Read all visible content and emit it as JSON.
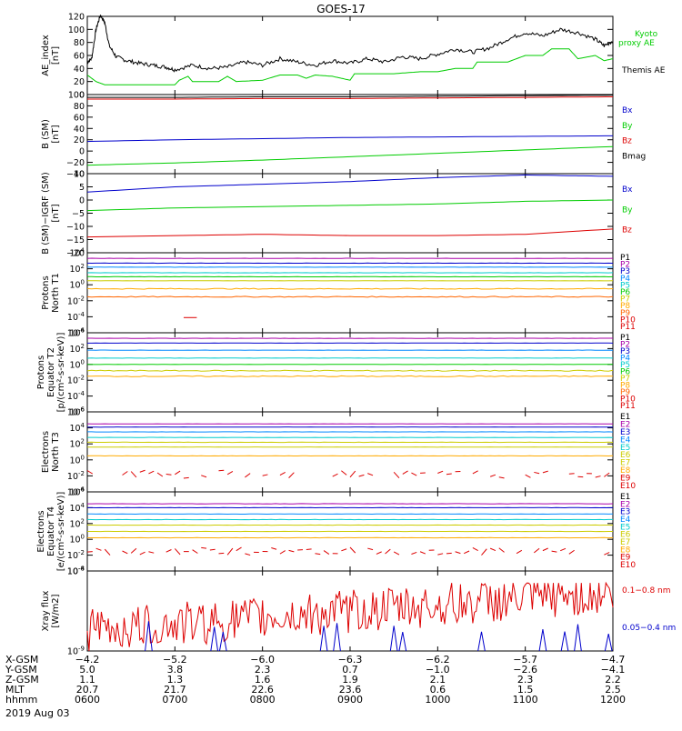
{
  "title": "GOES-17",
  "date_label": "2019 Aug 03",
  "colors": {
    "black": "#000000",
    "green": "#00cc00",
    "blue": "#0000cc",
    "red": "#dd0000"
  },
  "chart_data": [
    {
      "id": "ae",
      "type": "line",
      "ylabel": [
        "AE_index",
        "[nT]"
      ],
      "ylim": [
        0,
        120
      ],
      "yticks": [
        "0",
        "20",
        "40",
        "60",
        "80",
        "100",
        "120"
      ],
      "yscale": "linear",
      "legend": [
        {
          "text": "Kyoto",
          "color": "#00cc00"
        },
        {
          "text": "proxy AE",
          "color": "#00cc00"
        },
        {
          "text": "Themis AE",
          "color": "#000000"
        }
      ],
      "series": [
        {
          "color": "#000000",
          "x": [
            6.0,
            6.05,
            6.1,
            6.15,
            6.2,
            6.25,
            6.33,
            6.45,
            6.6,
            6.75,
            6.9,
            7.0,
            7.2,
            7.4,
            7.6,
            7.8,
            8.0,
            8.2,
            8.4,
            8.6,
            8.8,
            9.0,
            9.2,
            9.4,
            9.6,
            9.8,
            10.0,
            10.2,
            10.4,
            10.6,
            10.8,
            11.0,
            11.2,
            11.4,
            11.6,
            11.8,
            11.9,
            12.0
          ],
          "y": [
            50,
            55,
            100,
            122,
            110,
            75,
            58,
            52,
            48,
            45,
            42,
            38,
            45,
            40,
            42,
            50,
            45,
            55,
            50,
            45,
            52,
            48,
            55,
            50,
            58,
            55,
            62,
            70,
            65,
            72,
            85,
            95,
            90,
            100,
            95,
            85,
            75,
            82
          ]
        },
        {
          "color": "#00cc00",
          "x": [
            6.0,
            6.1,
            6.2,
            6.3,
            6.5,
            7.0,
            7.05,
            7.15,
            7.2,
            7.5,
            7.6,
            7.7,
            8.0,
            8.2,
            8.4,
            8.5,
            8.6,
            8.8,
            9.0,
            9.05,
            9.5,
            9.8,
            10.0,
            10.2,
            10.4,
            10.45,
            10.8,
            11.0,
            11.2,
            11.3,
            11.5,
            11.6,
            11.8,
            11.9,
            12.0
          ],
          "y": [
            30,
            20,
            15,
            15,
            15,
            15,
            22,
            28,
            20,
            20,
            28,
            20,
            22,
            30,
            30,
            25,
            30,
            28,
            22,
            32,
            32,
            35,
            35,
            40,
            40,
            50,
            50,
            60,
            60,
            70,
            70,
            55,
            60,
            52,
            55
          ]
        }
      ]
    },
    {
      "id": "bsm",
      "type": "line",
      "ylabel": [
        "B (SM)",
        "[nT]"
      ],
      "ylim": [
        -40,
        100
      ],
      "yticks": [
        "−40",
        "−20",
        "0",
        "20",
        "40",
        "60",
        "80",
        "100"
      ],
      "yscale": "linear",
      "legend": [
        {
          "text": "Bx",
          "color": "#0000cc"
        },
        {
          "text": "By",
          "color": "#00cc00"
        },
        {
          "text": "Bz",
          "color": "#dd0000"
        },
        {
          "text": "Bmag",
          "color": "#000000"
        }
      ],
      "series": [
        {
          "color": "#000000",
          "x": [
            6,
            7,
            8,
            9,
            10,
            11,
            12
          ],
          "y": [
            95,
            95,
            96,
            96,
            97,
            98,
            99
          ]
        },
        {
          "color": "#dd0000",
          "x": [
            6,
            7,
            8,
            9,
            10,
            11,
            12
          ],
          "y": [
            92,
            92,
            93,
            93,
            94,
            95,
            96
          ]
        },
        {
          "color": "#0000cc",
          "x": [
            6,
            7,
            8,
            9,
            10,
            11,
            12
          ],
          "y": [
            17,
            20,
            22,
            24,
            25,
            26,
            27
          ]
        },
        {
          "color": "#00cc00",
          "x": [
            6,
            7,
            8,
            9,
            10,
            11,
            12
          ],
          "y": [
            -25,
            -21,
            -16,
            -10,
            -4,
            2,
            8
          ]
        }
      ]
    },
    {
      "id": "bigrf",
      "type": "line",
      "ylabel": [
        "B (SM)−IGRF (SM)",
        "[nT]"
      ],
      "ylim": [
        -20,
        10
      ],
      "yticks": [
        "−20",
        "−15",
        "−10",
        "−5",
        "0",
        "5",
        "10"
      ],
      "yscale": "linear",
      "legend": [
        {
          "text": "Bx",
          "color": "#0000cc"
        },
        {
          "text": "By",
          "color": "#00cc00"
        },
        {
          "text": "Bz",
          "color": "#dd0000"
        }
      ],
      "series": [
        {
          "color": "#0000cc",
          "x": [
            6,
            7,
            8,
            9,
            10,
            11,
            12
          ],
          "y": [
            3,
            5,
            6,
            7,
            8.5,
            9.5,
            9
          ]
        },
        {
          "color": "#00cc00",
          "x": [
            6,
            7,
            8,
            9,
            10,
            11,
            12
          ],
          "y": [
            -4,
            -3,
            -2.5,
            -2,
            -1.5,
            -0.5,
            0
          ]
        },
        {
          "color": "#dd0000",
          "x": [
            6,
            7,
            8,
            9,
            10,
            11,
            12
          ],
          "y": [
            -14,
            -13.5,
            -13,
            -13.5,
            -13.5,
            -13,
            -11
          ]
        }
      ]
    },
    {
      "id": "p_t1",
      "type": "line",
      "ylabel": [
        "Protons",
        "North T1"
      ],
      "yscale": "log",
      "ylim_exp": [
        -6,
        4
      ],
      "yticks_exp": [
        -6,
        -4,
        -2,
        0,
        2,
        4
      ],
      "legend": [
        {
          "text": "P1",
          "color": "#000000"
        },
        {
          "text": "P2",
          "color": "#aa00aa"
        },
        {
          "text": "P3",
          "color": "#0000cc"
        },
        {
          "text": "P4",
          "color": "#0088ff"
        },
        {
          "text": "P5",
          "color": "#00cccc"
        },
        {
          "text": "P6",
          "color": "#00cc00"
        },
        {
          "text": "P7",
          "color": "#cccc00"
        },
        {
          "text": "P8",
          "color": "#ffaa00"
        },
        {
          "text": "P9",
          "color": "#ff6600"
        },
        {
          "text": "P10",
          "color": "#dd0000"
        },
        {
          "text": "P11",
          "color": "#dd0000"
        }
      ],
      "levels": [
        3.3,
        2.7,
        2.2,
        1.5,
        1.0,
        0.5,
        -0.5,
        -1.5
      ]
    },
    {
      "id": "p_t2",
      "type": "line",
      "ylabel": [
        "Protons",
        "Equator T2",
        "[p/(cm²-s-sr-keV)]"
      ],
      "yscale": "log",
      "ylim_exp": [
        -6,
        4
      ],
      "yticks_exp": [
        -6,
        -4,
        -2,
        0,
        2,
        4
      ],
      "legend": [
        {
          "text": "P1",
          "color": "#000000"
        },
        {
          "text": "P2",
          "color": "#aa00aa"
        },
        {
          "text": "P3",
          "color": "#0000cc"
        },
        {
          "text": "P4",
          "color": "#0088ff"
        },
        {
          "text": "P5",
          "color": "#00cccc"
        },
        {
          "text": "P6",
          "color": "#00cc00"
        },
        {
          "text": "P7",
          "color": "#cccc00"
        },
        {
          "text": "P8",
          "color": "#ffaa00"
        },
        {
          "text": "P9",
          "color": "#ff6600"
        },
        {
          "text": "P10",
          "color": "#dd0000"
        },
        {
          "text": "P11",
          "color": "#dd0000"
        }
      ],
      "levels": [
        3.3,
        2.7,
        1.8,
        0.8,
        0.0,
        -0.8,
        -1.5
      ]
    },
    {
      "id": "e_t3",
      "type": "line",
      "ylabel": [
        "Electrons",
        "North T3"
      ],
      "yscale": "log",
      "ylim_exp": [
        -4,
        6
      ],
      "yticks_exp": [
        -4,
        -2,
        0,
        2,
        4,
        6
      ],
      "legend": [
        {
          "text": "E1",
          "color": "#000000"
        },
        {
          "text": "E2",
          "color": "#aa00aa"
        },
        {
          "text": "E3",
          "color": "#0000cc"
        },
        {
          "text": "E4",
          "color": "#0088ff"
        },
        {
          "text": "E5",
          "color": "#00cccc"
        },
        {
          "text": "E6",
          "color": "#cccc00"
        },
        {
          "text": "E7",
          "color": "#cccc00"
        },
        {
          "text": "E8",
          "color": "#ffaa00"
        },
        {
          "text": "E9",
          "color": "#dd0000"
        },
        {
          "text": "E10",
          "color": "#dd0000"
        }
      ],
      "levels": [
        4.5,
        4.1,
        3.5,
        2.8,
        2.2,
        1.6,
        0.5
      ],
      "noisy_level": -1.8
    },
    {
      "id": "e_t4",
      "type": "line",
      "ylabel": [
        "Electrons",
        "Equator T4",
        "[e/(cm²-s-sr-keV)]"
      ],
      "yscale": "log",
      "ylim_exp": [
        -4,
        6
      ],
      "yticks_exp": [
        -4,
        -2,
        0,
        2,
        4,
        6
      ],
      "legend": [
        {
          "text": "E1",
          "color": "#000000"
        },
        {
          "text": "E2",
          "color": "#aa00aa"
        },
        {
          "text": "E3",
          "color": "#0000cc"
        },
        {
          "text": "E4",
          "color": "#0088ff"
        },
        {
          "text": "E5",
          "color": "#00cccc"
        },
        {
          "text": "E6",
          "color": "#cccc00"
        },
        {
          "text": "E7",
          "color": "#cccc00"
        },
        {
          "text": "E8",
          "color": "#ffaa00"
        },
        {
          "text": "E9",
          "color": "#dd0000"
        },
        {
          "text": "E10",
          "color": "#dd0000"
        }
      ],
      "levels": [
        4.5,
        4.0,
        3.2,
        2.5,
        1.8,
        1.0,
        0.2
      ],
      "noisy_level": -1.5
    },
    {
      "id": "xray",
      "type": "line",
      "ylabel": [
        "Xray flux",
        "[W/m2]"
      ],
      "yscale": "log",
      "ylim_exp": [
        -9,
        -8
      ],
      "yticks_exp": [
        -9,
        -8
      ],
      "legend": [
        {
          "text": "0.1−0.8 nm",
          "color": "#dd0000"
        },
        {
          "text": "0.05−0.4 nm",
          "color": "#0000cc"
        }
      ]
    }
  ],
  "xaxis": {
    "range": [
      6,
      12
    ],
    "ticks": [
      6,
      7,
      8,
      9,
      10,
      11,
      12
    ],
    "rows": [
      {
        "label": "X-GSM",
        "values": [
          "−4.2",
          "−5.2",
          "−6.0",
          "−6.3",
          "−6.2",
          "−5.7",
          "−4.7"
        ]
      },
      {
        "label": "Y-GSM",
        "values": [
          "5.0",
          "3.8",
          "2.3",
          "0.7",
          "−1.0",
          "−2.6",
          "−4.1"
        ]
      },
      {
        "label": "Z-GSM",
        "values": [
          "1.1",
          "1.3",
          "1.6",
          "1.9",
          "2.1",
          "2.3",
          "2.2"
        ]
      },
      {
        "label": "MLT",
        "values": [
          "20.7",
          "21.7",
          "22.6",
          "23.6",
          "0.6",
          "1.5",
          "2.5"
        ]
      },
      {
        "label": "hhmm",
        "values": [
          "0600",
          "0700",
          "0800",
          "0900",
          "1000",
          "1100",
          "1200"
        ]
      }
    ]
  }
}
